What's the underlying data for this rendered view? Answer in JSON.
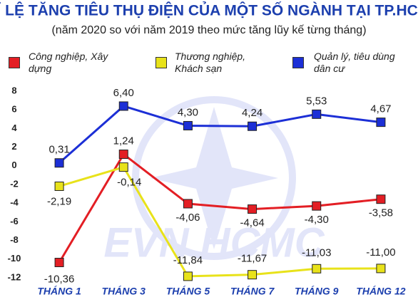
{
  "chart_data": {
    "type": "line",
    "title": "TỈ LỆ TĂNG TIÊU THỤ ĐIỆN CỦA MỘT SỐ NGÀNH TẠI TP.HCM",
    "subtitle": "(năm 2020 so với năm 2019 theo mức tăng lũy kế từng tháng)",
    "categories": [
      "THÁNG 1",
      "THÁNG 3",
      "THÁNG 5",
      "THÁNG 7",
      "THÁNG 9",
      "THÁNG 12"
    ],
    "series": [
      {
        "name": "Công nghiệp, Xây dựng",
        "color": "#e31e24",
        "values": [
          -10.36,
          1.24,
          -4.06,
          -4.64,
          -4.3,
          -3.58
        ],
        "value_labels": [
          "-10,36",
          "1,24",
          "-4,06",
          "-4,64",
          "-4,30",
          "-3,58"
        ]
      },
      {
        "name": "Thương nghiệp, Khách sạn",
        "color": "#e8e21a",
        "values": [
          -2.19,
          -0.14,
          -11.84,
          -11.67,
          -11.03,
          -11.0
        ],
        "value_labels": [
          "-2,19",
          "-0,14",
          "-11,84",
          "-11,67",
          "-11,03",
          "-11,00"
        ]
      },
      {
        "name": "Quản lý, tiêu dùng dân cư",
        "color": "#1c2fd6",
        "values": [
          0.31,
          6.4,
          4.3,
          4.24,
          5.53,
          4.67
        ],
        "value_labels": [
          "0,31",
          "6,40",
          "4,30",
          "4,24",
          "5,53",
          "4,67"
        ]
      }
    ],
    "ylim": [
      -12,
      8
    ],
    "yticks": [
      8,
      6,
      4,
      2,
      0,
      -2,
      -4,
      -6,
      -8,
      -10,
      -12
    ],
    "grid": false
  }
}
